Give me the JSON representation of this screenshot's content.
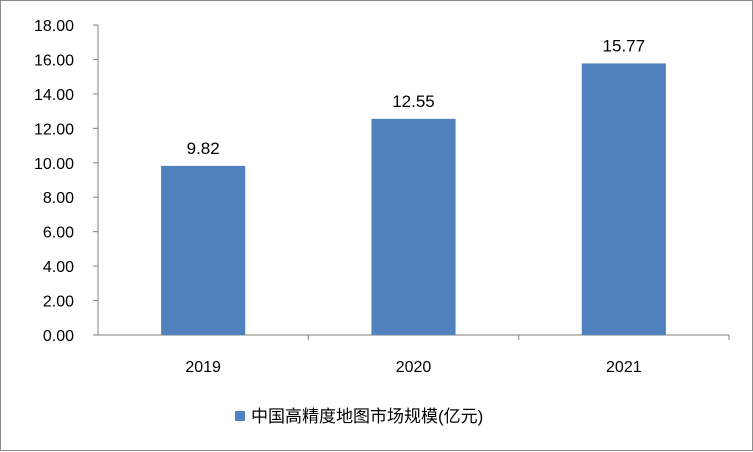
{
  "chart_data": {
    "type": "bar",
    "categories": [
      "2019",
      "2020",
      "2021"
    ],
    "series": [
      {
        "name": "中国高精度地图市场规模(亿元)",
        "values": [
          9.82,
          12.55,
          15.77
        ],
        "color": "#4f81bd"
      }
    ],
    "data_labels": [
      "9.82",
      "12.55",
      "15.77"
    ],
    "ylim": [
      0,
      18
    ],
    "ytick_step": 2,
    "ytick_labels": [
      "0.00",
      "2.00",
      "4.00",
      "6.00",
      "8.00",
      "10.00",
      "12.00",
      "14.00",
      "16.00",
      "18.00"
    ],
    "title": "",
    "xlabel": "",
    "ylabel": "",
    "grid": false,
    "legend_position": "bottom"
  }
}
